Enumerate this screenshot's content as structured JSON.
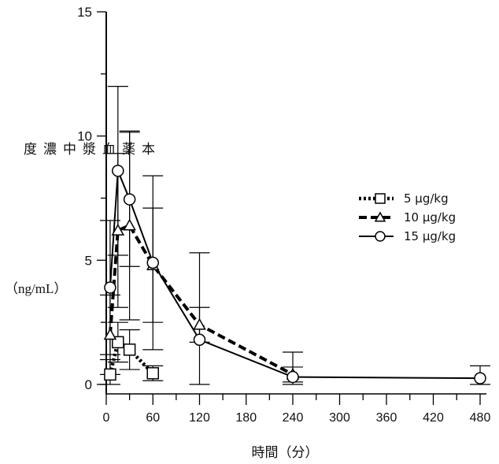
{
  "chart_data": {
    "type": "line",
    "ylabel": "本薬血漿中濃度",
    "ylabel_unit": "（ng/mL）",
    "xlabel": "時間（分）",
    "xlim": [
      0,
      480
    ],
    "ylim": [
      0,
      15
    ],
    "x_scale": "piecewise-linear",
    "x_ticks": [
      0,
      60,
      120,
      180,
      240,
      300,
      360,
      420,
      480
    ],
    "x_tick_labels": [
      "0",
      "60",
      "120",
      "180",
      "240",
      "300",
      "360",
      "420",
      "480"
    ],
    "y_ticks": [
      0,
      5,
      10,
      15
    ],
    "y_tick_labels": [
      "0",
      "5",
      "10",
      "15"
    ],
    "grid": false,
    "legend_position": "right-middle",
    "series": [
      {
        "name": "5 μg/kg",
        "line_style": "dotted",
        "marker": "square",
        "x": [
          5,
          15,
          30,
          60
        ],
        "y": [
          0.4,
          1.7,
          1.4,
          0.45
        ],
        "err": [
          0.6,
          0.8,
          0.8,
          0.3
        ]
      },
      {
        "name": "10 μg/kg",
        "line_style": "dashed",
        "marker": "triangle",
        "x": [
          5,
          15,
          30,
          60,
          120,
          240
        ],
        "y": [
          2.0,
          6.2,
          6.4,
          4.8,
          2.4,
          0.4
        ],
        "err": [
          1.6,
          3.1,
          3.8,
          2.3,
          0.7,
          0.3
        ]
      },
      {
        "name": "15 μg/kg",
        "line_style": "solid",
        "marker": "circle",
        "x": [
          5,
          15,
          30,
          60,
          120,
          240,
          480
        ],
        "y": [
          3.9,
          8.6,
          7.45,
          4.9,
          1.8,
          0.3,
          0.25
        ],
        "err": [
          2.7,
          3.4,
          2.7,
          3.5,
          3.5,
          1.0,
          0.5
        ]
      }
    ]
  }
}
